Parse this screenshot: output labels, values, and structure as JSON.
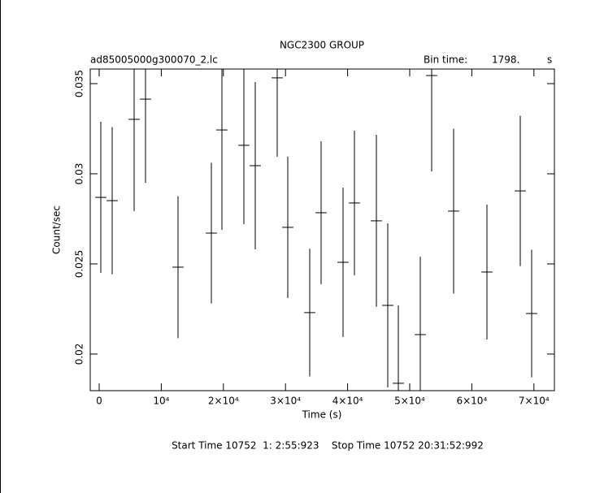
{
  "chart_data": {
    "type": "errorbar",
    "title": "NGC2300 GROUP",
    "file_label": "ad85005000g300070_2.lc",
    "bin_label": "Bin time:",
    "bin_time": "1798.",
    "bin_unit": "s",
    "x_label": "Time (s)",
    "y_label": "Count/sec",
    "footer": "Start Time 10752  1: 2:55:923    Stop Time 10752 20:31:52:992",
    "color": "#000000",
    "x": [
      262,
      2094,
      5628,
      7461,
      12696,
      18063,
      19764,
      23298,
      25131,
      28665,
      30366,
      33901,
      35733,
      39267,
      41099,
      44634,
      46466,
      48168,
      51702,
      53534,
      57068,
      62435,
      67801,
      69634
    ],
    "values": [
      0.02869,
      0.02851,
      0.03302,
      0.03414,
      0.02482,
      0.02671,
      0.03243,
      0.03158,
      0.03045,
      0.03532,
      0.02703,
      0.0223,
      0.02784,
      0.02509,
      0.02838,
      0.02739,
      0.0227,
      0.01838,
      0.02108,
      0.03545,
      0.02793,
      0.02455,
      0.02905,
      0.02225
    ],
    "errors": [
      0.00419,
      0.00408,
      0.00509,
      0.00464,
      0.00394,
      0.0039,
      0.00554,
      0.00437,
      0.00464,
      0.00437,
      0.00392,
      0.00354,
      0.00396,
      0.00414,
      0.00401,
      0.00477,
      0.00455,
      0.00432,
      0.00432,
      0.00532,
      0.00457,
      0.00374,
      0.00417,
      0.00354
    ],
    "xlim": [
      -1440,
      73300
    ],
    "ylim": [
      0.01797,
      0.03581
    ],
    "xticks": [
      0,
      {
        "value": 10000,
        "label": "10⁴"
      },
      {
        "value": 20000,
        "label": "2×10⁴"
      },
      {
        "value": 30000,
        "label": "3×10⁴"
      },
      {
        "value": 40000,
        "label": "4×10⁴"
      },
      {
        "value": 50000,
        "label": "5×10⁴"
      },
      {
        "value": 60000,
        "label": "6×10⁴"
      },
      {
        "value": 70000,
        "label": "7×10⁴"
      }
    ],
    "yticks": [
      0.02,
      0.025,
      0.03,
      0.035
    ]
  }
}
